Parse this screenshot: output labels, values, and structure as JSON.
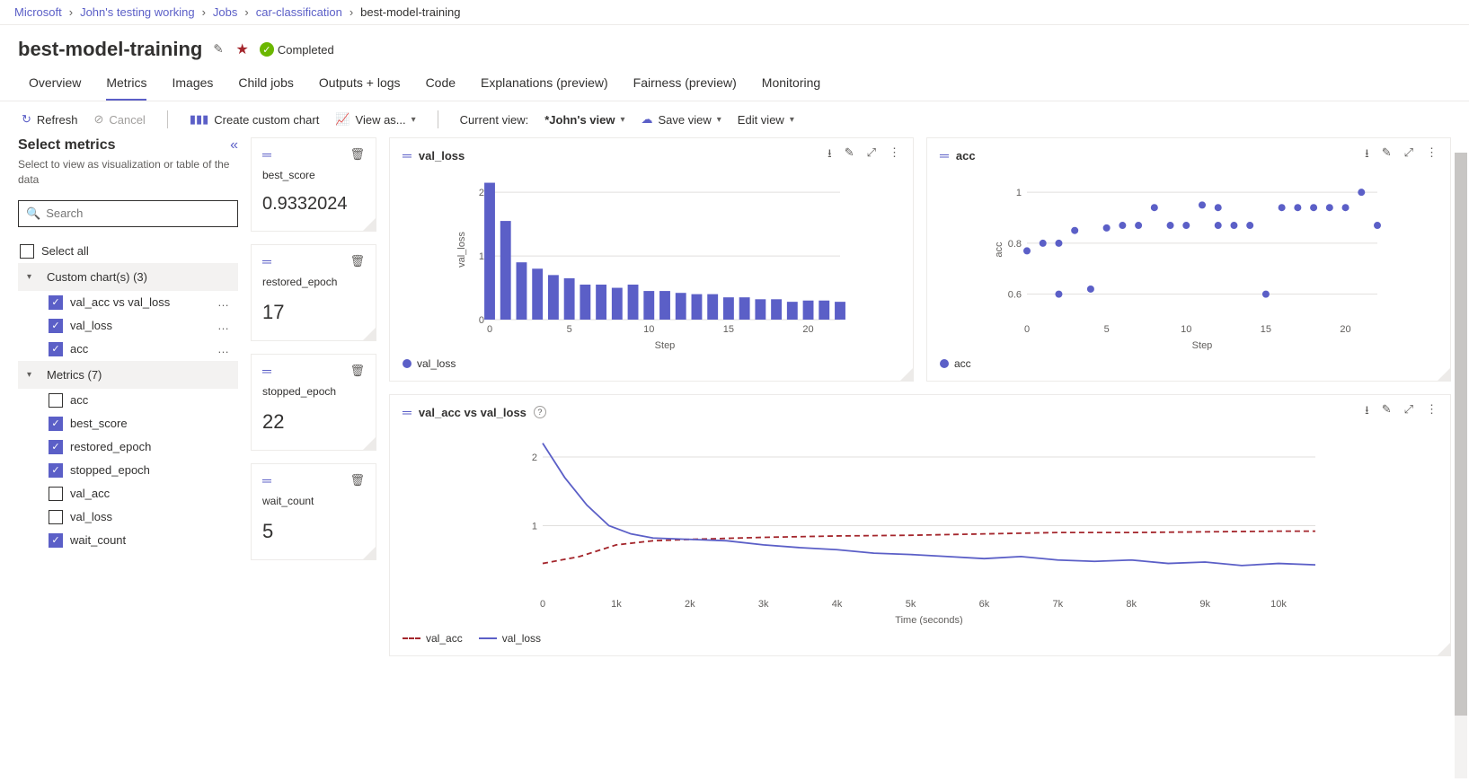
{
  "breadcrumb": {
    "items": [
      "Microsoft",
      "John's testing working",
      "Jobs",
      "car-classification"
    ],
    "current": "best-model-training"
  },
  "header": {
    "title": "best-model-training",
    "status_label": "Completed",
    "status_color": "#6bb700"
  },
  "tabs": {
    "items": [
      "Overview",
      "Metrics",
      "Images",
      "Child jobs",
      "Outputs + logs",
      "Code",
      "Explanations (preview)",
      "Fairness (preview)",
      "Monitoring"
    ],
    "active_index": 1
  },
  "toolbar": {
    "refresh": "Refresh",
    "cancel": "Cancel",
    "create_chart": "Create custom chart",
    "view_as": "View as...",
    "current_view_label": "Current view:",
    "current_view_value": "*John's view",
    "save_view": "Save view",
    "edit_view": "Edit view"
  },
  "sidebar": {
    "title": "Select metrics",
    "subtitle": "Select to view as visualization or table of the data",
    "search_placeholder": "Search",
    "select_all": "Select all",
    "groups": [
      {
        "label": "Custom chart(s) (3)",
        "items": [
          {
            "label": "val_acc vs val_loss",
            "checked": true,
            "more": true
          },
          {
            "label": "val_loss",
            "checked": true,
            "more": true
          },
          {
            "label": "acc",
            "checked": true,
            "more": true
          }
        ]
      },
      {
        "label": "Metrics (7)",
        "items": [
          {
            "label": "acc",
            "checked": false
          },
          {
            "label": "best_score",
            "checked": true
          },
          {
            "label": "restored_epoch",
            "checked": true
          },
          {
            "label": "stopped_epoch",
            "checked": true
          },
          {
            "label": "val_acc",
            "checked": false
          },
          {
            "label": "val_loss",
            "checked": false
          },
          {
            "label": "wait_count",
            "checked": true
          }
        ]
      }
    ]
  },
  "scalars": [
    {
      "label": "best_score",
      "value": "0.9332024",
      "big": true
    },
    {
      "label": "restored_epoch",
      "value": "17"
    },
    {
      "label": "stopped_epoch",
      "value": "22"
    },
    {
      "label": "wait_count",
      "value": "5"
    }
  ],
  "charts": {
    "val_loss": {
      "type": "bar",
      "title": "val_loss",
      "xlabel": "Step",
      "ylabel": "val_loss",
      "x": [
        0,
        1,
        2,
        3,
        4,
        5,
        6,
        7,
        8,
        9,
        10,
        11,
        12,
        13,
        14,
        15,
        16,
        17,
        18,
        19,
        20,
        21,
        22
      ],
      "values": [
        2.15,
        1.55,
        0.9,
        0.8,
        0.7,
        0.65,
        0.55,
        0.55,
        0.5,
        0.55,
        0.45,
        0.45,
        0.42,
        0.4,
        0.4,
        0.35,
        0.35,
        0.32,
        0.32,
        0.28,
        0.3,
        0.3,
        0.28
      ],
      "xlim": [
        0,
        22
      ],
      "ylim": [
        0,
        2.2
      ],
      "yticks": [
        0,
        1,
        2
      ],
      "xticks": [
        0,
        5,
        10,
        15,
        20
      ],
      "bar_color": "#5b5fc7",
      "grid_color": "#e1dfdd",
      "legend": "val_loss"
    },
    "acc": {
      "type": "scatter",
      "title": "acc",
      "xlabel": "Step",
      "ylabel": "acc",
      "x": [
        0,
        1,
        2,
        2,
        3,
        4,
        5,
        6,
        7,
        8,
        9,
        10,
        11,
        12,
        12,
        13,
        14,
        15,
        16,
        17,
        18,
        19,
        20,
        21,
        22
      ],
      "y": [
        0.77,
        0.8,
        0.8,
        0.6,
        0.85,
        0.62,
        0.86,
        0.87,
        0.87,
        0.94,
        0.87,
        0.87,
        0.95,
        0.94,
        0.87,
        0.87,
        0.87,
        0.6,
        0.94,
        0.94,
        0.94,
        0.94,
        0.94,
        1.0,
        0.87
      ],
      "xlim": [
        0,
        22
      ],
      "ylim": [
        0.5,
        1.05
      ],
      "yticks": [
        0.6,
        0.8,
        1
      ],
      "xticks": [
        0,
        5,
        10,
        15,
        20
      ],
      "marker_color": "#5b5fc7",
      "marker_size": 4,
      "grid_color": "#e1dfdd",
      "legend": "acc"
    },
    "val_acc_vs_val_loss": {
      "type": "line",
      "title": "val_acc vs val_loss",
      "xlabel": "Time (seconds)",
      "xlim": [
        0,
        10500
      ],
      "ylim": [
        0,
        2.3
      ],
      "yticks": [
        1,
        2
      ],
      "xticks": [
        0,
        1000,
        2000,
        3000,
        4000,
        5000,
        6000,
        7000,
        8000,
        9000,
        10000
      ],
      "xtick_labels": [
        "0",
        "1k",
        "2k",
        "3k",
        "4k",
        "5k",
        "6k",
        "7k",
        "8k",
        "9k",
        "10k"
      ],
      "grid_color": "#e1dfdd",
      "series": [
        {
          "name": "val_acc",
          "color": "#a4262c",
          "dash": true,
          "x": [
            0,
            500,
            1000,
            1500,
            2000,
            3000,
            4000,
            5000,
            6000,
            7000,
            8000,
            9000,
            10000,
            10500
          ],
          "y": [
            0.45,
            0.55,
            0.72,
            0.78,
            0.8,
            0.83,
            0.85,
            0.86,
            0.88,
            0.9,
            0.9,
            0.91,
            0.92,
            0.92
          ]
        },
        {
          "name": "val_loss",
          "color": "#5b5fc7",
          "dash": false,
          "x": [
            0,
            300,
            600,
            900,
            1200,
            1500,
            2000,
            2500,
            3000,
            3500,
            4000,
            4500,
            5000,
            5500,
            6000,
            6500,
            7000,
            7500,
            8000,
            8500,
            9000,
            9500,
            10000,
            10500
          ],
          "y": [
            2.2,
            1.7,
            1.3,
            1.0,
            0.88,
            0.82,
            0.8,
            0.78,
            0.72,
            0.68,
            0.65,
            0.6,
            0.58,
            0.55,
            0.52,
            0.55,
            0.5,
            0.48,
            0.5,
            0.45,
            0.47,
            0.42,
            0.45,
            0.43
          ]
        }
      ]
    }
  },
  "colors": {
    "accent": "#5b5fc7",
    "danger": "#a4262c",
    "grid": "#e1dfdd",
    "text_muted": "#605e5c"
  }
}
